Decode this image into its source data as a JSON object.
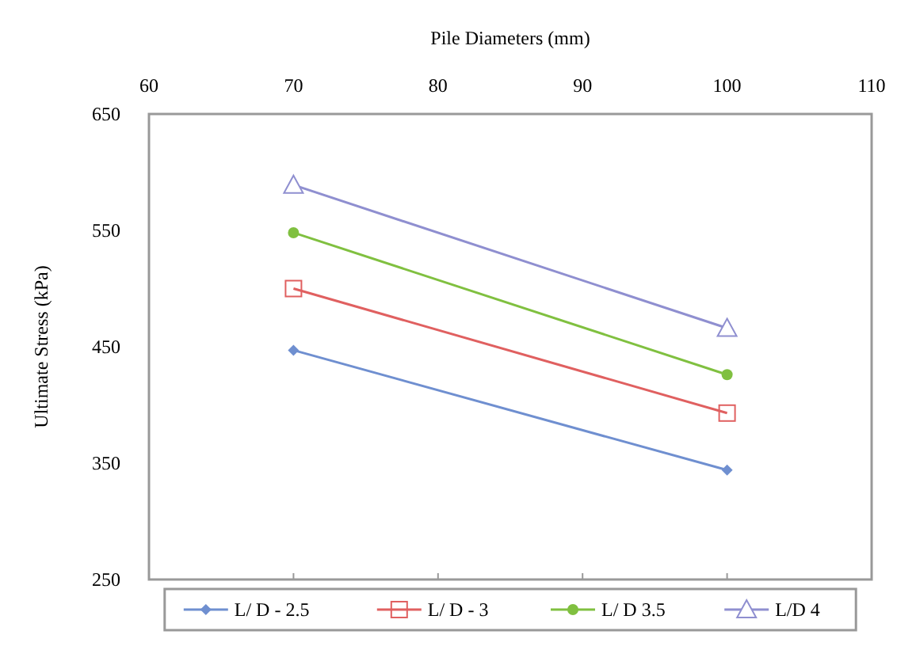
{
  "chart_data": {
    "type": "line",
    "xlabel": "Pile Diameters  (mm)",
    "ylabel": "Ultimate Stress (kPa)",
    "xlim": [
      60,
      110
    ],
    "xticks": [
      60,
      70,
      80,
      90,
      100,
      110
    ],
    "ylim": [
      250,
      650
    ],
    "yticks": [
      250,
      350,
      450,
      550,
      650
    ],
    "x": [
      70,
      100
    ],
    "grid": false,
    "legend": "bottom",
    "series": [
      {
        "name": "L/ D - 2.5",
        "color": "#6f8fd0",
        "marker": "diamond",
        "values": [
          447,
          344
        ]
      },
      {
        "name": "L/ D - 3",
        "color": "#e06060",
        "marker": "square",
        "values": [
          500,
          393
        ]
      },
      {
        "name": "L/ D 3.5",
        "color": "#80c040",
        "marker": "circle",
        "values": [
          548,
          426
        ]
      },
      {
        "name": "L/D 4",
        "color": "#8f8fd0",
        "marker": "triangle",
        "values": [
          589,
          466
        ]
      }
    ]
  }
}
